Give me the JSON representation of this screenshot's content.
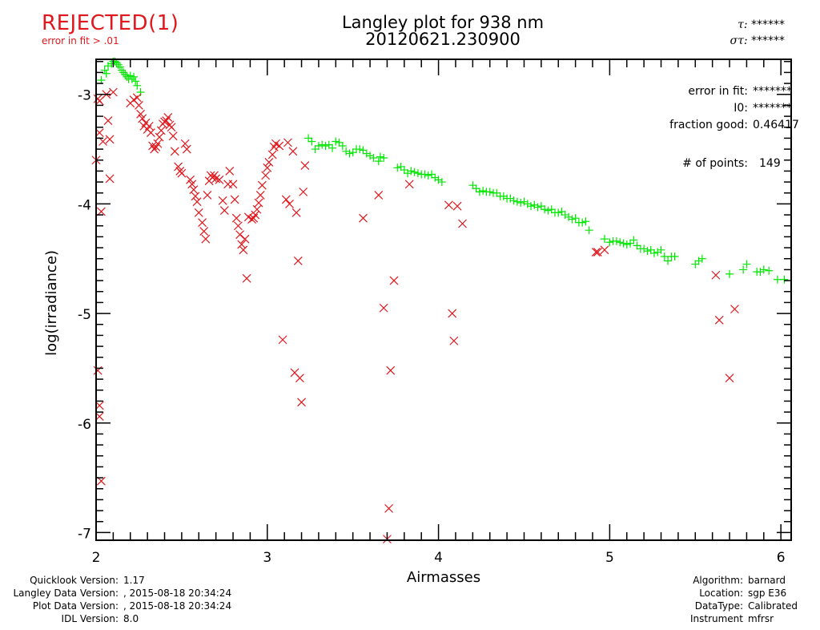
{
  "status": {
    "label": "REJECTED(1)",
    "reason": "error in fit > .01",
    "color": "#e0171c"
  },
  "header": {
    "title": "Langley plot for 938 nm",
    "subtitle": "20120621.230900",
    "tau_label": "τ:",
    "tau_value": "******",
    "sigma_label": "στ:",
    "sigma_value": "******"
  },
  "stats": {
    "error_label": "error in fit:",
    "error_value": "*******",
    "i0_label": "I0:",
    "i0_value": "*******",
    "fraction_label": "fraction good:",
    "fraction_value": "0.46417",
    "points_label": "# of points:",
    "points_value": "149"
  },
  "footer_left": [
    {
      "label": "Quicklook Version:",
      "value": "1.17"
    },
    {
      "label": "Langley Data Version:",
      "value": ", 2015-08-18 20:34:24"
    },
    {
      "label": "Plot Data Version:",
      "value": ", 2015-08-18 20:34:24"
    },
    {
      "label": "IDL Version:",
      "value": "8.0"
    }
  ],
  "footer_right": [
    {
      "label": "Algorithm:",
      "value": "barnard"
    },
    {
      "label": "Location:",
      "value": "sgp E36"
    },
    {
      "label": "DataType:",
      "value": "Calibrated"
    },
    {
      "label": "Instrument",
      "value": "mfrsr"
    }
  ],
  "chart_data": {
    "type": "scatter",
    "title": "Langley plot for 938 nm",
    "subtitle": "20120621.230900",
    "xlabel": "Airmasses",
    "ylabel": "log(irradiance)",
    "xlim": [
      2.0,
      6.06
    ],
    "ylim": [
      -7.07,
      -2.68
    ],
    "xticks": [
      2,
      3,
      4,
      5,
      6
    ],
    "xtick_labels": [
      "2",
      "3",
      "4",
      "5",
      "6"
    ],
    "yticks": [
      -3,
      -4,
      -5,
      -6,
      -7
    ],
    "ytick_labels": [
      "-3",
      "-4",
      "-5",
      "-6",
      "-7"
    ],
    "grid": false,
    "series": [
      {
        "name": "good",
        "marker": "+",
        "color": "#00e600",
        "points": [
          [
            2.03,
            -2.87
          ],
          [
            2.05,
            -2.78
          ],
          [
            2.06,
            -2.81
          ],
          [
            2.07,
            -2.74
          ],
          [
            2.09,
            -2.72
          ],
          [
            2.1,
            -2.7
          ],
          [
            2.11,
            -2.7
          ],
          [
            2.12,
            -2.71
          ],
          [
            2.13,
            -2.73
          ],
          [
            2.14,
            -2.75
          ],
          [
            2.15,
            -2.78
          ],
          [
            2.16,
            -2.8
          ],
          [
            2.17,
            -2.82
          ],
          [
            2.18,
            -2.84
          ],
          [
            2.19,
            -2.86
          ],
          [
            2.2,
            -2.83
          ],
          [
            2.21,
            -2.86
          ],
          [
            2.22,
            -2.84
          ],
          [
            2.23,
            -2.88
          ],
          [
            2.24,
            -2.92
          ],
          [
            2.26,
            -2.98
          ],
          [
            3.24,
            -3.4
          ],
          [
            3.26,
            -3.43
          ],
          [
            3.28,
            -3.5
          ],
          [
            3.3,
            -3.47
          ],
          [
            3.32,
            -3.46
          ],
          [
            3.34,
            -3.47
          ],
          [
            3.36,
            -3.46
          ],
          [
            3.38,
            -3.49
          ],
          [
            3.4,
            -3.43
          ],
          [
            3.42,
            -3.44
          ],
          [
            3.44,
            -3.47
          ],
          [
            3.46,
            -3.52
          ],
          [
            3.48,
            -3.54
          ],
          [
            3.5,
            -3.53
          ],
          [
            3.52,
            -3.5
          ],
          [
            3.54,
            -3.5
          ],
          [
            3.56,
            -3.51
          ],
          [
            3.58,
            -3.54
          ],
          [
            3.6,
            -3.56
          ],
          [
            3.62,
            -3.58
          ],
          [
            3.65,
            -3.61
          ],
          [
            3.66,
            -3.57
          ],
          [
            3.68,
            -3.58
          ],
          [
            3.76,
            -3.67
          ],
          [
            3.78,
            -3.66
          ],
          [
            3.8,
            -3.69
          ],
          [
            3.82,
            -3.72
          ],
          [
            3.84,
            -3.7
          ],
          [
            3.86,
            -3.71
          ],
          [
            3.88,
            -3.72
          ],
          [
            3.9,
            -3.73
          ],
          [
            3.92,
            -3.73
          ],
          [
            3.94,
            -3.74
          ],
          [
            3.96,
            -3.73
          ],
          [
            3.98,
            -3.76
          ],
          [
            4.0,
            -3.78
          ],
          [
            4.02,
            -3.8
          ],
          [
            4.2,
            -3.83
          ],
          [
            4.22,
            -3.86
          ],
          [
            4.24,
            -3.89
          ],
          [
            4.26,
            -3.88
          ],
          [
            4.28,
            -3.89
          ],
          [
            4.3,
            -3.89
          ],
          [
            4.32,
            -3.9
          ],
          [
            4.34,
            -3.9
          ],
          [
            4.36,
            -3.93
          ],
          [
            4.38,
            -3.93
          ],
          [
            4.4,
            -3.95
          ],
          [
            4.42,
            -3.95
          ],
          [
            4.44,
            -3.97
          ],
          [
            4.46,
            -3.98
          ],
          [
            4.48,
            -3.99
          ],
          [
            4.5,
            -3.98
          ],
          [
            4.52,
            -4.0
          ],
          [
            4.54,
            -4.02
          ],
          [
            4.56,
            -4.01
          ],
          [
            4.58,
            -4.03
          ],
          [
            4.6,
            -4.02
          ],
          [
            4.62,
            -4.05
          ],
          [
            4.64,
            -4.06
          ],
          [
            4.66,
            -4.05
          ],
          [
            4.68,
            -4.08
          ],
          [
            4.7,
            -4.08
          ],
          [
            4.72,
            -4.07
          ],
          [
            4.74,
            -4.1
          ],
          [
            4.76,
            -4.12
          ],
          [
            4.78,
            -4.14
          ],
          [
            4.8,
            -4.13
          ],
          [
            4.82,
            -4.17
          ],
          [
            4.84,
            -4.17
          ],
          [
            4.86,
            -4.16
          ],
          [
            4.88,
            -4.24
          ],
          [
            4.97,
            -4.32
          ],
          [
            5.0,
            -4.35
          ],
          [
            5.02,
            -4.34
          ],
          [
            5.04,
            -4.34
          ],
          [
            5.06,
            -4.35
          ],
          [
            5.08,
            -4.36
          ],
          [
            5.1,
            -4.37
          ],
          [
            5.12,
            -4.36
          ],
          [
            5.14,
            -4.33
          ],
          [
            5.16,
            -4.38
          ],
          [
            5.18,
            -4.41
          ],
          [
            5.2,
            -4.41
          ],
          [
            5.22,
            -4.43
          ],
          [
            5.24,
            -4.42
          ],
          [
            5.26,
            -4.45
          ],
          [
            5.28,
            -4.44
          ],
          [
            5.3,
            -4.42
          ],
          [
            5.32,
            -4.48
          ],
          [
            5.34,
            -4.52
          ],
          [
            5.36,
            -4.48
          ],
          [
            5.38,
            -4.48
          ],
          [
            5.5,
            -4.55
          ],
          [
            5.52,
            -4.52
          ],
          [
            5.54,
            -4.5
          ],
          [
            5.7,
            -4.64
          ],
          [
            5.8,
            -4.55
          ],
          [
            5.78,
            -4.6
          ],
          [
            5.86,
            -4.62
          ],
          [
            5.88,
            -4.62
          ],
          [
            5.9,
            -4.6
          ],
          [
            5.93,
            -4.61
          ],
          [
            5.98,
            -4.69
          ],
          [
            6.02,
            -4.69
          ]
        ]
      },
      {
        "name": "rejected",
        "marker": "x",
        "color": "#e0171c",
        "points": [
          [
            2.0,
            -3.6
          ],
          [
            2.01,
            -3.04
          ],
          [
            2.02,
            -3.06
          ],
          [
            2.02,
            -3.35
          ],
          [
            2.03,
            -4.07
          ],
          [
            2.04,
            -3.43
          ],
          [
            2.01,
            -5.52
          ],
          [
            2.02,
            -5.84
          ],
          [
            2.02,
            -5.94
          ],
          [
            2.03,
            -6.53
          ],
          [
            2.06,
            -3.0
          ],
          [
            2.07,
            -3.24
          ],
          [
            2.08,
            -3.41
          ],
          [
            2.08,
            -3.77
          ],
          [
            2.1,
            -2.98
          ],
          [
            2.2,
            -3.08
          ],
          [
            2.22,
            -3.05
          ],
          [
            2.24,
            -3.03
          ],
          [
            2.25,
            -3.1
          ],
          [
            2.26,
            -3.18
          ],
          [
            2.27,
            -3.22
          ],
          [
            2.28,
            -3.29
          ],
          [
            2.29,
            -3.26
          ],
          [
            2.3,
            -3.32
          ],
          [
            2.31,
            -3.29
          ],
          [
            2.32,
            -3.35
          ],
          [
            2.33,
            -3.47
          ],
          [
            2.34,
            -3.5
          ],
          [
            2.35,
            -3.48
          ],
          [
            2.36,
            -3.45
          ],
          [
            2.37,
            -3.39
          ],
          [
            2.38,
            -3.33
          ],
          [
            2.39,
            -3.27
          ],
          [
            2.4,
            -3.25
          ],
          [
            2.41,
            -3.24
          ],
          [
            2.42,
            -3.21
          ],
          [
            2.43,
            -3.28
          ],
          [
            2.44,
            -3.3
          ],
          [
            2.45,
            -3.38
          ],
          [
            2.46,
            -3.52
          ],
          [
            2.48,
            -3.66
          ],
          [
            2.49,
            -3.7
          ],
          [
            2.5,
            -3.72
          ],
          [
            2.52,
            -3.45
          ],
          [
            2.53,
            -3.5
          ],
          [
            2.55,
            -3.78
          ],
          [
            2.56,
            -3.82
          ],
          [
            2.57,
            -3.87
          ],
          [
            2.58,
            -3.93
          ],
          [
            2.59,
            -3.98
          ],
          [
            2.6,
            -4.08
          ],
          [
            2.62,
            -4.17
          ],
          [
            2.63,
            -4.25
          ],
          [
            2.64,
            -4.32
          ],
          [
            2.65,
            -3.92
          ],
          [
            2.66,
            -3.79
          ],
          [
            2.67,
            -3.74
          ],
          [
            2.68,
            -3.76
          ],
          [
            2.69,
            -3.74
          ],
          [
            2.7,
            -3.77
          ],
          [
            2.72,
            -3.78
          ],
          [
            2.74,
            -3.97
          ],
          [
            2.75,
            -4.06
          ],
          [
            2.77,
            -3.82
          ],
          [
            2.78,
            -3.7
          ],
          [
            2.8,
            -3.82
          ],
          [
            2.81,
            -3.96
          ],
          [
            2.82,
            -4.13
          ],
          [
            2.83,
            -4.2
          ],
          [
            2.84,
            -4.28
          ],
          [
            2.85,
            -4.37
          ],
          [
            2.86,
            -4.42
          ],
          [
            2.87,
            -4.32
          ],
          [
            2.88,
            -4.68
          ],
          [
            2.89,
            -4.12
          ],
          [
            2.91,
            -4.14
          ],
          [
            2.92,
            -4.13
          ],
          [
            2.93,
            -4.1
          ],
          [
            2.94,
            -4.05
          ],
          [
            2.95,
            -3.99
          ],
          [
            2.96,
            -3.92
          ],
          [
            2.97,
            -3.83
          ],
          [
            2.99,
            -3.74
          ],
          [
            3.0,
            -3.67
          ],
          [
            3.01,
            -3.62
          ],
          [
            3.03,
            -3.55
          ],
          [
            3.04,
            -3.48
          ],
          [
            3.05,
            -3.45
          ],
          [
            3.07,
            -3.47
          ],
          [
            3.09,
            -5.24
          ],
          [
            3.11,
            -3.96
          ],
          [
            3.12,
            -3.44
          ],
          [
            3.13,
            -4.0
          ],
          [
            3.15,
            -3.52
          ],
          [
            3.16,
            -5.54
          ],
          [
            3.17,
            -4.08
          ],
          [
            3.18,
            -4.52
          ],
          [
            3.19,
            -5.59
          ],
          [
            3.2,
            -5.81
          ],
          [
            3.21,
            -3.89
          ],
          [
            3.22,
            -3.65
          ],
          [
            3.56,
            -4.13
          ],
          [
            3.65,
            -3.92
          ],
          [
            3.68,
            -4.95
          ],
          [
            3.7,
            -7.06
          ],
          [
            3.71,
            -6.78
          ],
          [
            3.72,
            -5.52
          ],
          [
            3.74,
            -4.7
          ],
          [
            3.83,
            -3.82
          ],
          [
            4.06,
            -4.01
          ],
          [
            4.08,
            -5.0
          ],
          [
            4.09,
            -5.25
          ],
          [
            4.11,
            -4.02
          ],
          [
            4.14,
            -4.18
          ],
          [
            4.92,
            -4.44
          ],
          [
            4.93,
            -4.44
          ],
          [
            4.97,
            -4.42
          ],
          [
            5.62,
            -4.65
          ],
          [
            5.64,
            -5.06
          ],
          [
            5.7,
            -5.59
          ],
          [
            5.73,
            -4.96
          ]
        ]
      }
    ]
  }
}
